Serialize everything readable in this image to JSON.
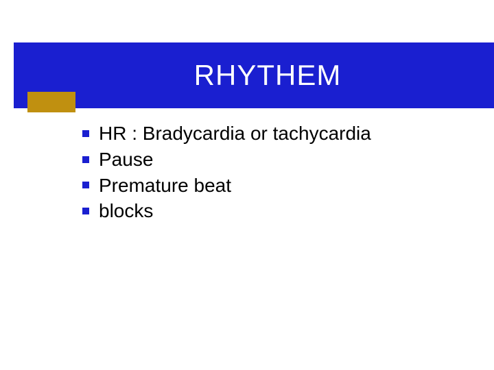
{
  "colors": {
    "title_bg": "#1a1fd0",
    "title_fg": "#ffffff",
    "accent": "#c09010",
    "bullet": "#1a1fd0",
    "text": "#000000"
  },
  "title": "RHYTHEM",
  "items": [
    " HR  : Bradycardia or tachycardia",
    "Pause",
    "Premature beat",
    "blocks"
  ]
}
